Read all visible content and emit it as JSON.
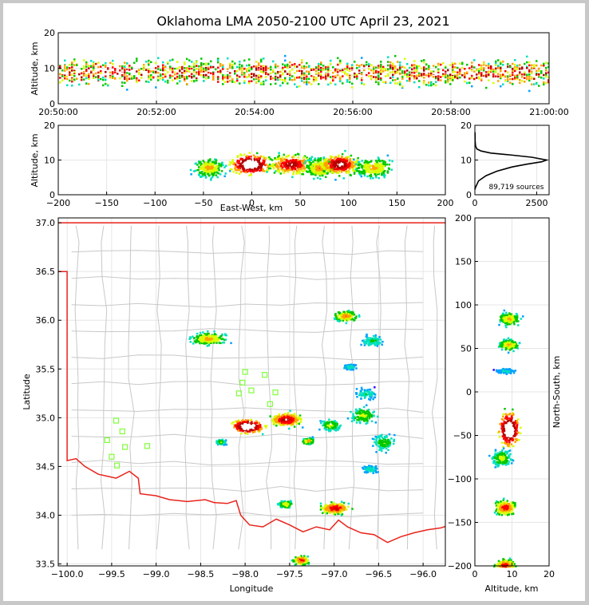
{
  "title": "Oklahoma LMA 2050-2100 UTC April 23, 2021",
  "colors": {
    "border": "#e8231b",
    "county": "#c8c8c8",
    "station": "#7fff3a",
    "profile": "#000000",
    "grid": "#e6e6e6",
    "density": [
      "#3a00ff",
      "#00a0ff",
      "#00e0c0",
      "#00c800",
      "#d8ff00",
      "#ffa000",
      "#ff0000",
      "#b40000",
      "#ffffff"
    ]
  },
  "chart_data": [
    {
      "id": "time_height",
      "type": "heatmap",
      "xlabel": "",
      "ylabel": "Altitude, km",
      "xlim": [
        "20:50:00",
        "21:00:00"
      ],
      "ylim": [
        0,
        20
      ],
      "xticks": [
        "20:50:00",
        "20:52:00",
        "20:54:00",
        "20:56:00",
        "20:58:00",
        "21:00:00"
      ],
      "yticks": [
        0,
        10,
        20
      ],
      "peak_altitude_km": 9
    },
    {
      "id": "ew_height",
      "type": "heatmap",
      "xlabel": "East-West, km",
      "ylabel": "Altitude, km",
      "xlim": [
        -200,
        200
      ],
      "ylim": [
        0,
        20
      ],
      "xticks": [
        -200,
        -150,
        -100,
        -50,
        0,
        50,
        100,
        150,
        200
      ],
      "yticks": [
        0,
        10,
        20
      ],
      "clusters": [
        {
          "x": -45,
          "alt": 8,
          "w": 15,
          "intensity": 0.55
        },
        {
          "x": -2,
          "alt": 9,
          "w": 18,
          "intensity": 1.0
        },
        {
          "x": 40,
          "alt": 9,
          "w": 20,
          "intensity": 0.8
        },
        {
          "x": 70,
          "alt": 8,
          "w": 14,
          "intensity": 0.6
        },
        {
          "x": 90,
          "alt": 9,
          "w": 18,
          "intensity": 0.85
        },
        {
          "x": 125,
          "alt": 8,
          "w": 18,
          "intensity": 0.55
        }
      ]
    },
    {
      "id": "altitude_histogram",
      "type": "line",
      "xlabel": "",
      "ylabel": "",
      "xlim": [
        0,
        3000
      ],
      "ylim": [
        0,
        20
      ],
      "xticks": [
        0,
        2500
      ],
      "yticks": [
        0,
        10,
        20
      ],
      "annotation": "89,719 sources",
      "x": [
        0,
        20,
        150,
        450,
        900,
        1500,
        2100,
        2700,
        2900,
        2300,
        1400,
        650,
        250,
        80,
        30,
        10,
        5
      ],
      "y": [
        1.5,
        2.0,
        4.0,
        5.5,
        6.8,
        8.0,
        8.8,
        9.5,
        10.0,
        10.8,
        11.5,
        12.0,
        12.6,
        13.2,
        14.0,
        15.5,
        18.0
      ]
    },
    {
      "id": "plan_view",
      "type": "heatmap",
      "xlabel": "Longitude",
      "ylabel": "Latitude",
      "xlim": [
        -100.1,
        -95.75
      ],
      "ylim": [
        33.48,
        37.05
      ],
      "xticks": [
        -100.0,
        -99.5,
        -99.0,
        -98.5,
        -98.0,
        -97.5,
        -97.0,
        -96.5,
        -96.0
      ],
      "yticks": [
        33.5,
        34.0,
        34.5,
        35.0,
        35.5,
        36.0,
        36.5,
        37.0
      ],
      "cells": [
        {
          "lon": -98.42,
          "lat": 35.82,
          "w": 0.35,
          "h": 0.12,
          "intensity": 0.55
        },
        {
          "lon": -96.88,
          "lat": 36.05,
          "w": 0.22,
          "h": 0.1,
          "intensity": 0.6
        },
        {
          "lon": -96.58,
          "lat": 35.8,
          "w": 0.2,
          "h": 0.1,
          "intensity": 0.35
        },
        {
          "lon": -96.83,
          "lat": 35.53,
          "w": 0.12,
          "h": 0.05,
          "intensity": 0.3
        },
        {
          "lon": -97.98,
          "lat": 34.92,
          "w": 0.3,
          "h": 0.12,
          "intensity": 1.0
        },
        {
          "lon": -97.55,
          "lat": 34.99,
          "w": 0.3,
          "h": 0.12,
          "intensity": 0.8
        },
        {
          "lon": -98.28,
          "lat": 34.76,
          "w": 0.1,
          "h": 0.05,
          "intensity": 0.4
        },
        {
          "lon": -97.3,
          "lat": 34.77,
          "w": 0.12,
          "h": 0.06,
          "intensity": 0.55
        },
        {
          "lon": -97.05,
          "lat": 34.93,
          "w": 0.2,
          "h": 0.1,
          "intensity": 0.45
        },
        {
          "lon": -96.68,
          "lat": 35.03,
          "w": 0.25,
          "h": 0.15,
          "intensity": 0.45
        },
        {
          "lon": -96.45,
          "lat": 34.75,
          "w": 0.22,
          "h": 0.15,
          "intensity": 0.4
        },
        {
          "lon": -96.65,
          "lat": 35.25,
          "w": 0.2,
          "h": 0.1,
          "intensity": 0.3
        },
        {
          "lon": -96.6,
          "lat": 34.48,
          "w": 0.15,
          "h": 0.07,
          "intensity": 0.3
        },
        {
          "lon": -97.0,
          "lat": 34.08,
          "w": 0.28,
          "h": 0.1,
          "intensity": 0.75
        },
        {
          "lon": -97.55,
          "lat": 34.12,
          "w": 0.15,
          "h": 0.07,
          "intensity": 0.5
        },
        {
          "lon": -97.38,
          "lat": 33.55,
          "w": 0.15,
          "h": 0.08,
          "intensity": 0.7
        }
      ],
      "stations": [
        {
          "lon": -99.45,
          "lat": 34.97
        },
        {
          "lon": -99.38,
          "lat": 34.86
        },
        {
          "lon": -99.55,
          "lat": 34.77
        },
        {
          "lon": -99.35,
          "lat": 34.7
        },
        {
          "lon": -99.1,
          "lat": 34.71
        },
        {
          "lon": -99.5,
          "lat": 34.6
        },
        {
          "lon": -99.44,
          "lat": 34.51
        },
        {
          "lon": -98.0,
          "lat": 35.47
        },
        {
          "lon": -97.78,
          "lat": 35.44
        },
        {
          "lon": -98.03,
          "lat": 35.36
        },
        {
          "lon": -97.93,
          "lat": 35.28
        },
        {
          "lon": -98.07,
          "lat": 35.25
        },
        {
          "lon": -97.66,
          "lat": 35.26
        },
        {
          "lon": -97.72,
          "lat": 35.14
        }
      ]
    },
    {
      "id": "ns_height",
      "type": "heatmap",
      "xlabel": "Altitude, km",
      "ylabel": "North-South, km",
      "xlim": [
        0,
        20
      ],
      "ylim": [
        -200,
        200
      ],
      "xticks": [
        0,
        10,
        20
      ],
      "yticks": [
        -200,
        -150,
        -100,
        -50,
        0,
        50,
        100,
        150,
        200
      ],
      "clusters": [
        {
          "ns": 85,
          "alt": 9,
          "h": 12,
          "intensity": 0.55
        },
        {
          "ns": 55,
          "alt": 9,
          "h": 10,
          "intensity": 0.55
        },
        {
          "ns": 25,
          "alt": 8,
          "h": 5,
          "intensity": 0.25
        },
        {
          "ns": -42,
          "alt": 9,
          "h": 30,
          "intensity": 1.0
        },
        {
          "ns": -75,
          "alt": 7,
          "h": 15,
          "intensity": 0.45
        },
        {
          "ns": -132,
          "alt": 8,
          "h": 14,
          "intensity": 0.7
        },
        {
          "ns": -198,
          "alt": 8,
          "h": 10,
          "intensity": 0.7
        }
      ]
    }
  ]
}
